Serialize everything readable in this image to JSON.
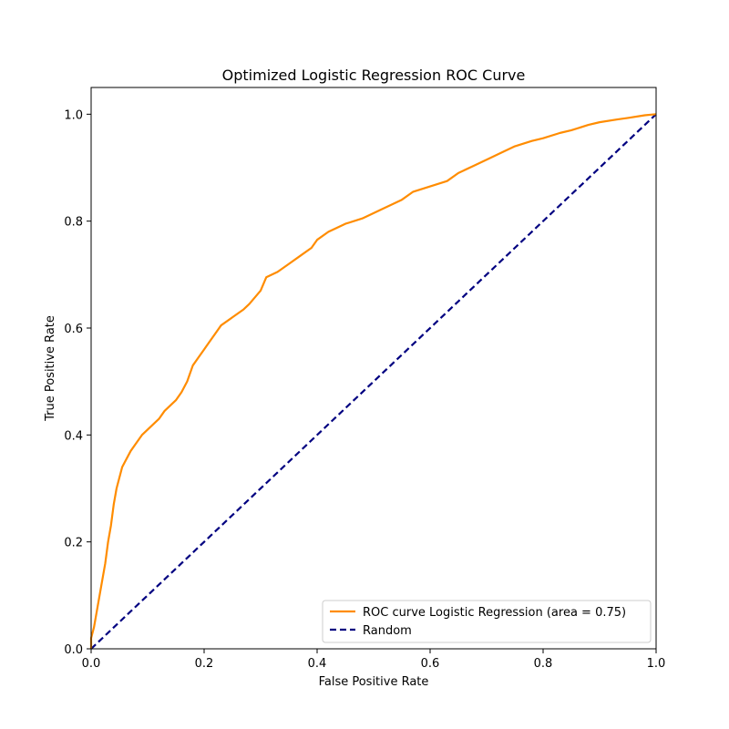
{
  "chart_data": {
    "type": "line",
    "title": "Optimized Logistic Regression ROC Curve",
    "xlabel": "False Positive Rate",
    "ylabel": "True Positive Rate",
    "xlim": [
      0.0,
      1.0
    ],
    "ylim": [
      0.0,
      1.05
    ],
    "x_ticks": [
      "0.0",
      "0.2",
      "0.4",
      "0.6",
      "0.8",
      "1.0"
    ],
    "y_ticks": [
      "0.0",
      "0.2",
      "0.4",
      "0.6",
      "0.8",
      "1.0"
    ],
    "grid": false,
    "legend_position": "lower-right",
    "series": [
      {
        "name": "ROC curve Logistic Regression (area = 0.75)",
        "style": "solid",
        "color": "#ff8c00",
        "x": [
          0.0,
          0.0,
          0.005,
          0.01,
          0.015,
          0.02,
          0.025,
          0.03,
          0.035,
          0.04,
          0.045,
          0.05,
          0.055,
          0.06,
          0.065,
          0.07,
          0.08,
          0.09,
          0.1,
          0.11,
          0.12,
          0.13,
          0.14,
          0.15,
          0.16,
          0.17,
          0.18,
          0.19,
          0.2,
          0.21,
          0.22,
          0.23,
          0.25,
          0.27,
          0.28,
          0.3,
          0.31,
          0.33,
          0.35,
          0.37,
          0.39,
          0.4,
          0.42,
          0.45,
          0.48,
          0.5,
          0.52,
          0.55,
          0.57,
          0.6,
          0.63,
          0.65,
          0.68,
          0.7,
          0.73,
          0.75,
          0.78,
          0.8,
          0.83,
          0.85,
          0.88,
          0.9,
          0.93,
          0.95,
          0.98,
          1.0
        ],
        "y": [
          0.0,
          0.02,
          0.04,
          0.07,
          0.1,
          0.13,
          0.16,
          0.2,
          0.23,
          0.27,
          0.3,
          0.32,
          0.34,
          0.35,
          0.36,
          0.37,
          0.385,
          0.4,
          0.41,
          0.42,
          0.43,
          0.445,
          0.455,
          0.465,
          0.48,
          0.5,
          0.53,
          0.545,
          0.56,
          0.575,
          0.59,
          0.605,
          0.62,
          0.635,
          0.645,
          0.67,
          0.695,
          0.705,
          0.72,
          0.735,
          0.75,
          0.765,
          0.78,
          0.795,
          0.805,
          0.815,
          0.825,
          0.84,
          0.855,
          0.865,
          0.875,
          0.89,
          0.905,
          0.915,
          0.93,
          0.94,
          0.95,
          0.955,
          0.965,
          0.97,
          0.98,
          0.985,
          0.99,
          0.993,
          0.998,
          1.0
        ]
      },
      {
        "name": "Random",
        "style": "dashed",
        "color": "#000080",
        "x": [
          0.0,
          1.0
        ],
        "y": [
          0.0,
          1.0
        ]
      }
    ]
  }
}
